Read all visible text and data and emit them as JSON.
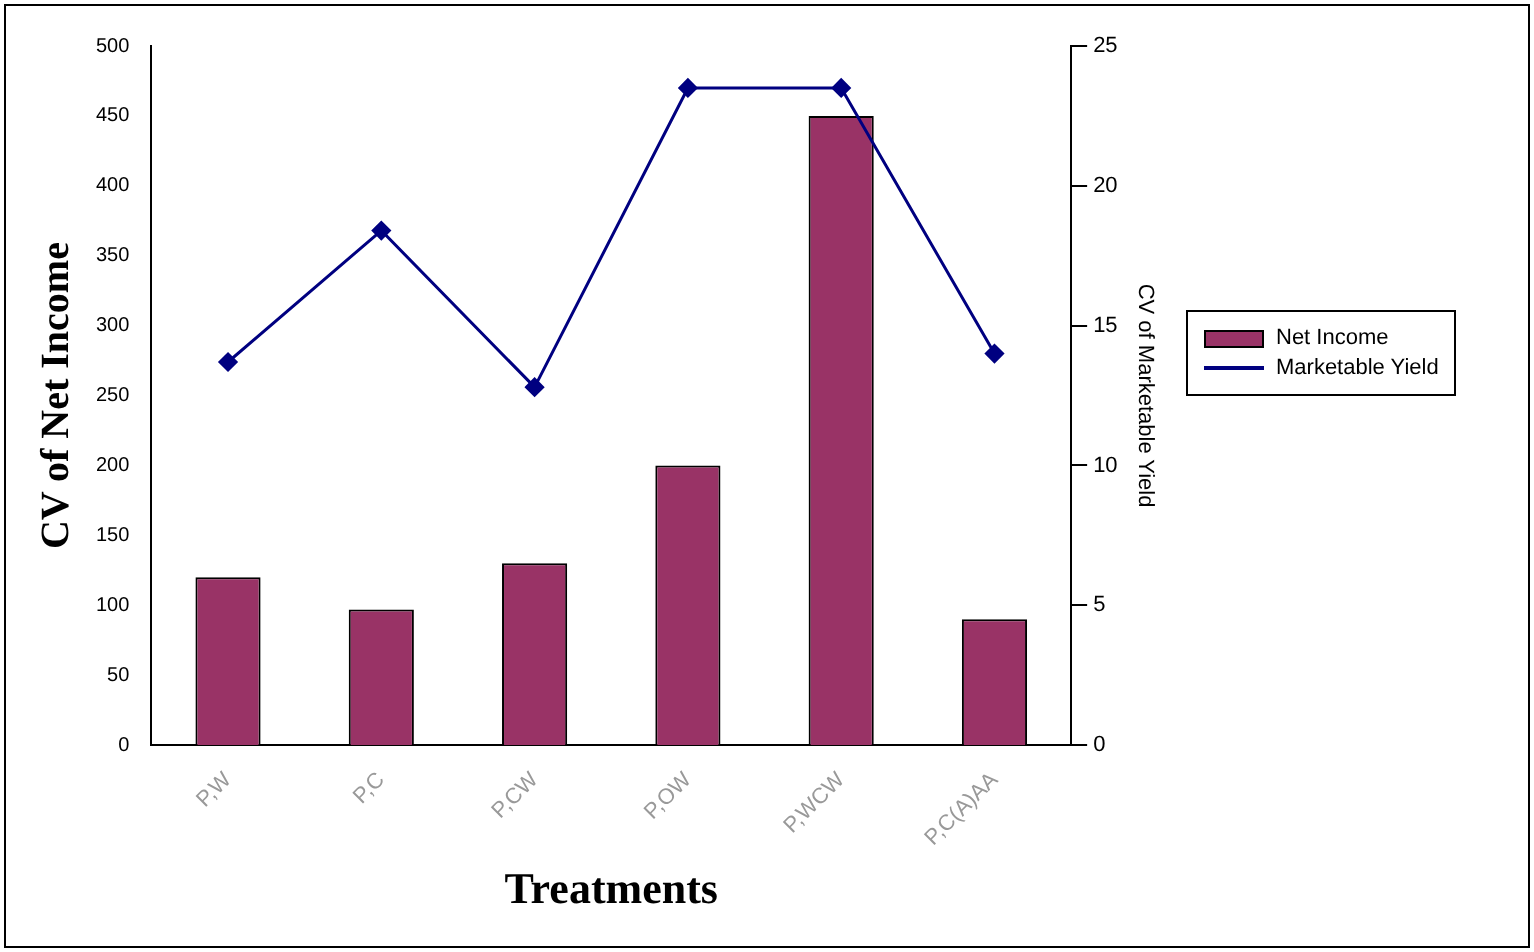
{
  "chart_data": {
    "type": "bar",
    "xlabel": "Treatments",
    "ylabel": "CV of Net Income",
    "y2label": "CV of Marketable Yield",
    "categories": [
      "P,W",
      "P,C",
      "P,CW",
      "P,OW",
      "P,WCW",
      "P,C(A)AA"
    ],
    "series": [
      {
        "name": "Net Income",
        "color": "#993366",
        "values": [
          120,
          97,
          130,
          200,
          450,
          90
        ]
      },
      {
        "name": "Marketable Yield",
        "type": "line",
        "axis": "y2",
        "color": "#000080",
        "marker": "diamond",
        "values": [
          13.7,
          18.4,
          12.8,
          23.5,
          23.5,
          14
        ]
      }
    ],
    "ylim": [
      0,
      500
    ],
    "yticks": [
      0,
      50,
      100,
      150,
      200,
      250,
      300,
      350,
      400,
      450,
      500
    ],
    "y2lim": [
      0,
      25
    ],
    "y2ticks": [
      0,
      5,
      10,
      15,
      20,
      25
    ],
    "grid": false,
    "legend": "right"
  }
}
